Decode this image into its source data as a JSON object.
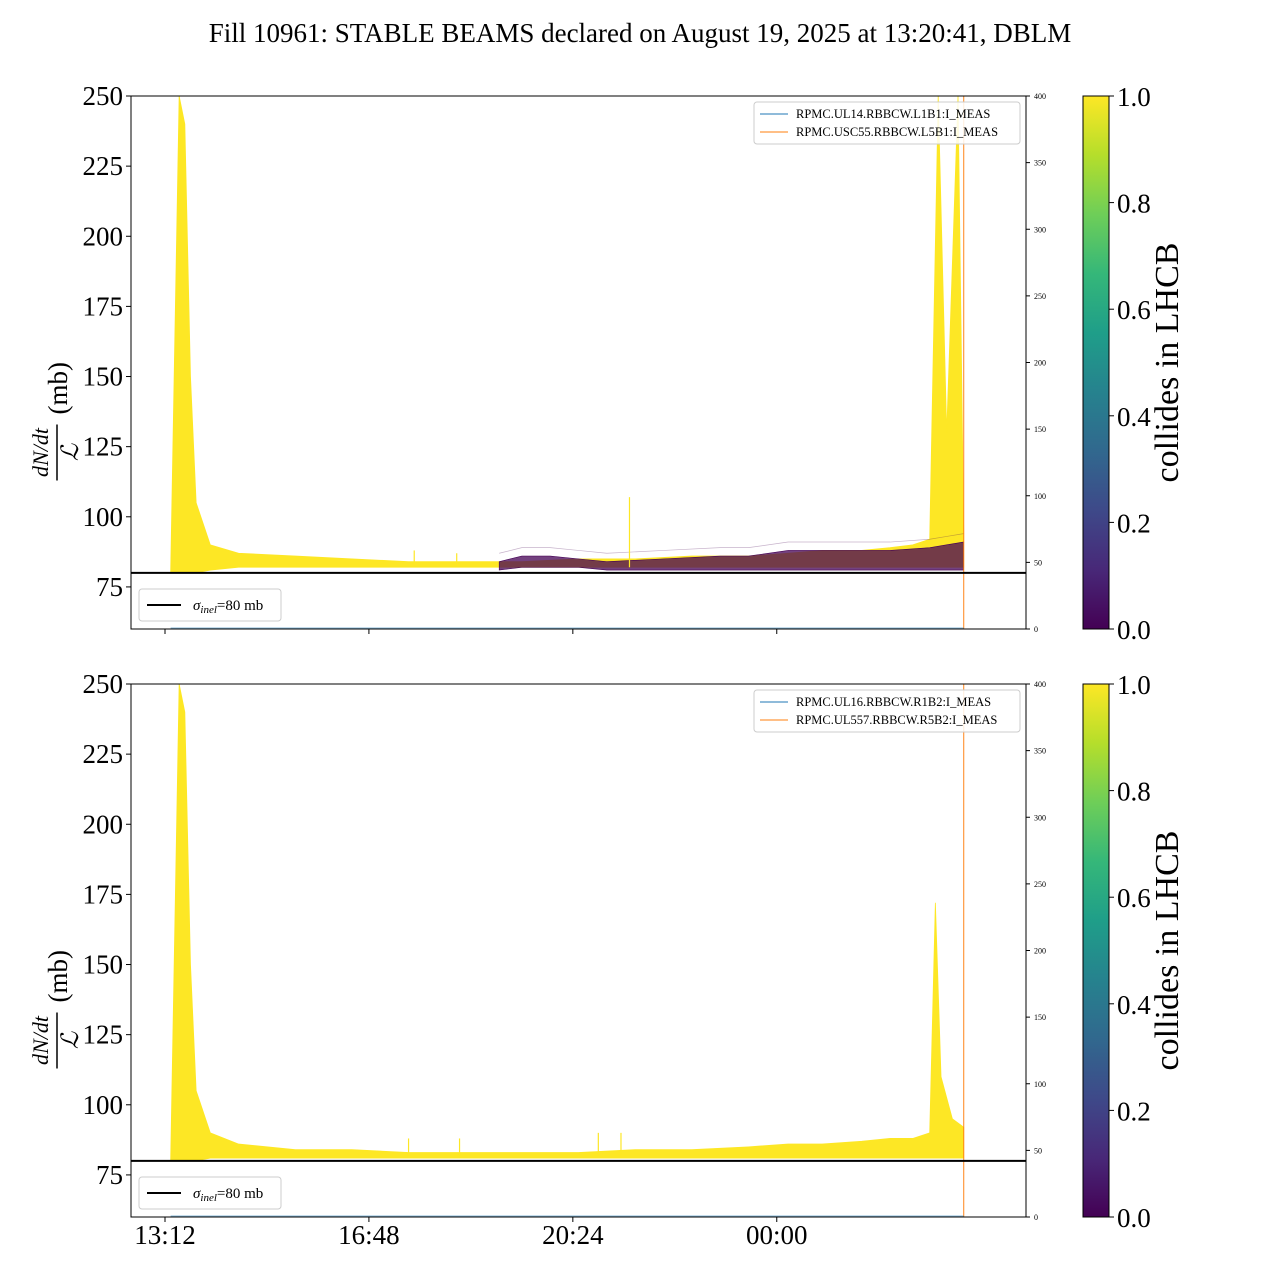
{
  "figure": {
    "title": "Fill 10961: STABLE BEAMS declared on August 19, 2025 at 13:20:41, DBLM"
  },
  "chart_data": [
    {
      "type": "area",
      "panel": "top",
      "ylabel_num": "dN/dt",
      "ylabel_den": "ℒ",
      "ylabel_unit": "(mb)",
      "ylim": [
        60,
        250
      ],
      "yticks": [
        75,
        100,
        125,
        150,
        175,
        200,
        225,
        250
      ],
      "xlim_hours": [
        12.6,
        28.4
      ],
      "xticks": [
        {
          "hour": 13.2,
          "label": "13:12"
        },
        {
          "hour": 16.8,
          "label": "16:48"
        },
        {
          "hour": 20.4,
          "label": "20:24"
        },
        {
          "hour": 24.0,
          "label": "00:00"
        }
      ],
      "secondary_ylim": [
        0,
        400
      ],
      "secondary_yticks": [
        0,
        50,
        100,
        150,
        200,
        250,
        300,
        350,
        400
      ],
      "sigma_inel": {
        "value": 80,
        "legend_label": "σinel=80 mb",
        "legend_main": "σ",
        "legend_sub": "inel",
        "legend_rest": "=80 mb"
      },
      "series": [
        {
          "name": "RPMC.UL14.RBBCW.L1B1:I_MEAS",
          "color": "#1f77b4"
        },
        {
          "name": "RPMC.USC55.RBBCW.L5B1:I_MEAS",
          "color": "#ff7f0e"
        }
      ],
      "envelope_colliding": {
        "color": "#fde725",
        "time": [
          13.3,
          13.45,
          13.55,
          13.65,
          13.75,
          14.0,
          14.5,
          15.5,
          16.5,
          17.5,
          18.5,
          19.5,
          20.5,
          21.5,
          22.5,
          23.5,
          24.2,
          24.8,
          25.5,
          26.0,
          26.4,
          26.7,
          26.85,
          27.0,
          27.2,
          27.3
        ],
        "upper": [
          80,
          250,
          240,
          150,
          105,
          90,
          87,
          86,
          85,
          84,
          84,
          84,
          85,
          85,
          86,
          86,
          87,
          88,
          88,
          89,
          90,
          92,
          250,
          130,
          250,
          95
        ],
        "lower": [
          80,
          80,
          80,
          80,
          80,
          81,
          82,
          82,
          82,
          82,
          82,
          82,
          82,
          82,
          82,
          82,
          82,
          82,
          82,
          82,
          82,
          82,
          82,
          82,
          82,
          82
        ]
      },
      "envelope_noncolliding": {
        "color": "#440154",
        "time": [
          19.1,
          19.5,
          20.0,
          20.5,
          21.0,
          22.0,
          23.0,
          23.5,
          24.2,
          25.0,
          26.0,
          26.7,
          27.0,
          27.3
        ],
        "upper": [
          84,
          86,
          86,
          85,
          84,
          85,
          86,
          86,
          88,
          88,
          88,
          89,
          90,
          91
        ],
        "lower": [
          81,
          82,
          82,
          82,
          81,
          81,
          81,
          81,
          81,
          81,
          81,
          81,
          81,
          81
        ]
      },
      "spikes": [
        {
          "hour": 17.6,
          "value": 88
        },
        {
          "hour": 18.35,
          "value": 87
        },
        {
          "hour": 21.4,
          "value": 107
        }
      ],
      "dump_hour": 27.3
    },
    {
      "type": "area",
      "panel": "bottom",
      "ylabel_num": "dN/dt",
      "ylabel_den": "ℒ",
      "ylabel_unit": "(mb)",
      "ylim": [
        60,
        250
      ],
      "yticks": [
        75,
        100,
        125,
        150,
        175,
        200,
        225,
        250
      ],
      "xlim_hours": [
        12.6,
        28.4
      ],
      "xticks": [
        {
          "hour": 13.2,
          "label": "13:12"
        },
        {
          "hour": 16.8,
          "label": "16:48"
        },
        {
          "hour": 20.4,
          "label": "20:24"
        },
        {
          "hour": 24.0,
          "label": "00:00"
        }
      ],
      "secondary_ylim": [
        0,
        400
      ],
      "secondary_yticks": [
        0,
        50,
        100,
        150,
        200,
        250,
        300,
        350,
        400
      ],
      "sigma_inel": {
        "value": 80,
        "legend_label": "σinel=80 mb",
        "legend_main": "σ",
        "legend_sub": "inel",
        "legend_rest": "=80 mb"
      },
      "series": [
        {
          "name": "RPMC.UL16.RBBCW.R1B2:I_MEAS",
          "color": "#1f77b4"
        },
        {
          "name": "RPMC.UL557.RBBCW.R5B2:I_MEAS",
          "color": "#ff7f0e"
        }
      ],
      "envelope_colliding": {
        "color": "#fde725",
        "time": [
          13.3,
          13.45,
          13.55,
          13.65,
          13.75,
          14.0,
          14.5,
          15.5,
          16.5,
          17.5,
          18.5,
          19.5,
          20.5,
          21.5,
          22.5,
          23.5,
          24.2,
          24.8,
          25.5,
          26.0,
          26.4,
          26.7,
          26.8,
          26.9,
          27.1,
          27.3
        ],
        "upper": [
          80,
          250,
          240,
          150,
          105,
          90,
          86,
          84,
          84,
          83,
          83,
          83,
          83,
          84,
          84,
          85,
          86,
          86,
          87,
          88,
          88,
          90,
          172,
          110,
          95,
          92
        ],
        "lower": [
          80,
          80,
          80,
          80,
          80,
          81,
          81,
          81,
          81,
          81,
          81,
          81,
          81,
          81,
          81,
          81,
          81,
          81,
          81,
          81,
          81,
          81,
          81,
          81,
          81,
          81
        ]
      },
      "envelope_noncolliding": {
        "color": "#440154",
        "time": [],
        "upper": [],
        "lower": []
      },
      "spikes": [
        {
          "hour": 17.5,
          "value": 88
        },
        {
          "hour": 18.4,
          "value": 88
        },
        {
          "hour": 20.85,
          "value": 90
        },
        {
          "hour": 21.25,
          "value": 90
        }
      ],
      "dump_hour": 27.3
    }
  ],
  "colorbar": {
    "label": "collides in LHCB",
    "ticks": [
      "0.0",
      "0.2",
      "0.4",
      "0.6",
      "0.8",
      "1.0"
    ],
    "colormap": "viridis",
    "stops": [
      "#440154",
      "#482878",
      "#3e4989",
      "#31688e",
      "#26828e",
      "#1f9e89",
      "#35b779",
      "#6ece58",
      "#b5de2b",
      "#fde725"
    ]
  }
}
